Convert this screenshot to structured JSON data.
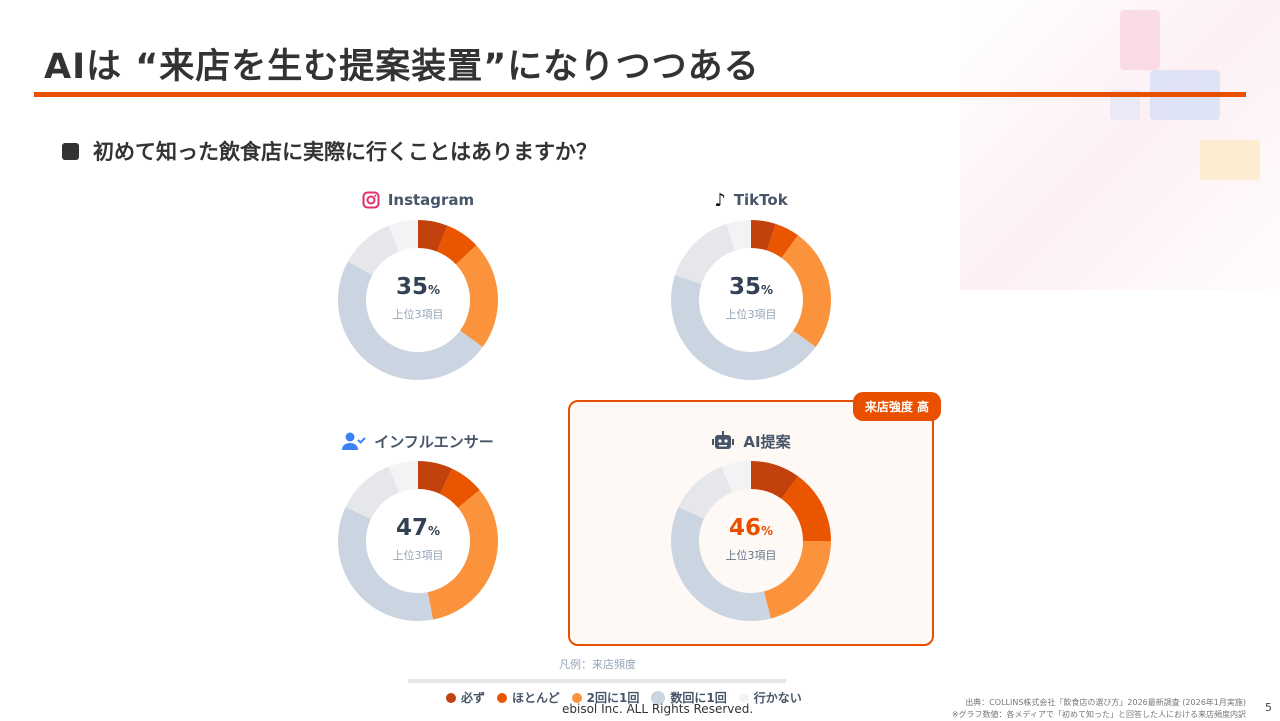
{
  "title": "AIは “来店を生む提案装置”になりつつある",
  "question": "初めて知った飲食店に実際に行くことはありますか？",
  "center_sub": "上位3項目",
  "percent_sign": "%",
  "colors": {
    "must": "#c2410c",
    "mostly": "#ea5500",
    "half": "#fb923c",
    "few": "#cbd5e1",
    "other": "#e5e7eb",
    "never": "#f1f3f5",
    "accent": "#e85000"
  },
  "chart_data": [
    {
      "type": "pie",
      "title": "Instagram",
      "top3": "35",
      "segments": [
        6,
        7,
        22,
        48,
        11,
        6
      ]
    },
    {
      "type": "pie",
      "title": "TikTok",
      "top3": "35",
      "segments": [
        5,
        5,
        25,
        45,
        15,
        5
      ]
    },
    {
      "type": "pie",
      "title": "インフルエンサー",
      "top3": "47",
      "segments": [
        7,
        7,
        33,
        35,
        12,
        6
      ]
    },
    {
      "type": "pie",
      "title": "AI提案",
      "top3": "46",
      "segments": [
        10,
        15,
        21,
        36,
        12,
        6
      ]
    }
  ],
  "badge": "来店強度 高",
  "legend": {
    "title": "凡例：来店頻度",
    "items": [
      "必ず",
      "ほとんど",
      "2回に1回",
      "数回に1回",
      "行かない"
    ]
  },
  "footer": {
    "copyright": "ebisol Inc. ALL Rights Reserved.",
    "source1": "出典：COLLINS株式会社「飲食店の選び方」2026最新調査 (2026年1月実施)",
    "source2": "※グラフ数値：各メディアで「初めて知った」と回答した人における来店頻度内訳",
    "page": "5"
  }
}
